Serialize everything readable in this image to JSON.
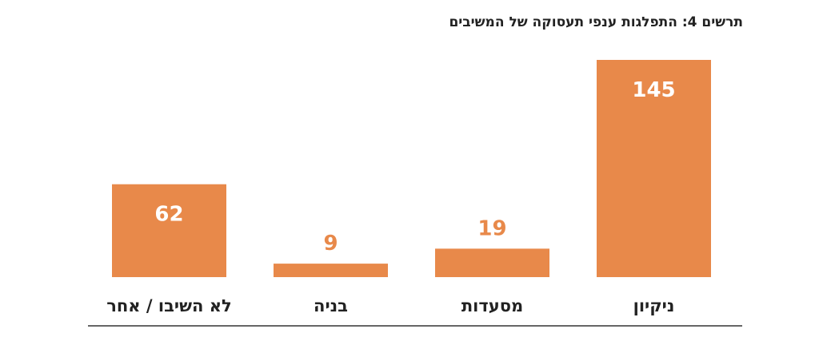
{
  "chart_data": {
    "type": "bar",
    "title": "תרשים 4: התפלגות ענפי תעסוקה של המשיבים",
    "categories": [
      "ניקיון",
      "מסעדות",
      "בניה",
      "לא השיבו / אחר"
    ],
    "values": [
      145,
      19,
      9,
      62
    ],
    "ylim": [
      0,
      145
    ],
    "bar_color": "#E8894A",
    "value_label_color": "#E8894A",
    "grid": false,
    "legend": "none"
  }
}
